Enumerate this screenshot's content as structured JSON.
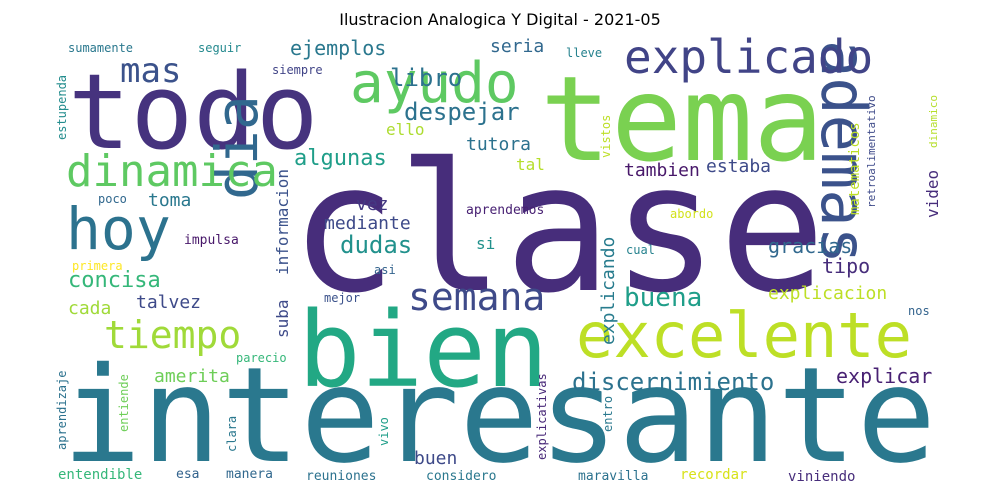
{
  "title": "Ilustracion Analogica Y Digital - 2021-05",
  "words": [
    {
      "text": "clase",
      "color": "#472d7b"
    },
    {
      "text": "interesante",
      "color": "#2a788e"
    },
    {
      "text": "bien",
      "color": "#22a884"
    },
    {
      "text": "tema",
      "color": "#7ad151"
    },
    {
      "text": "todo",
      "color": "#46337e"
    },
    {
      "text": "excelente",
      "color": "#bddf26"
    },
    {
      "text": "ademas",
      "color": "#3b528b"
    },
    {
      "text": "ayudo",
      "color": "#5ec962"
    },
    {
      "text": "hoy",
      "color": "#2c728e"
    },
    {
      "text": "dia",
      "color": "#31688e"
    },
    {
      "text": "explicado",
      "color": "#414487"
    },
    {
      "text": "dinamica",
      "color": "#5ec962"
    },
    {
      "text": "semana",
      "color": "#3e4a89"
    },
    {
      "text": "tiempo",
      "color": "#a0da39"
    },
    {
      "text": "mas",
      "color": "#3b528b"
    },
    {
      "text": "discernimiento",
      "color": "#2c728e"
    },
    {
      "text": "buena",
      "color": "#1f9e89"
    },
    {
      "text": "despejar",
      "color": "#2c728e"
    },
    {
      "text": "libro",
      "color": "#2c728e"
    },
    {
      "text": "ejemplos",
      "color": "#2a788e"
    },
    {
      "text": "algunas",
      "color": "#1f9e89"
    },
    {
      "text": "dudas",
      "color": "#21918c"
    },
    {
      "text": "mediante",
      "color": "#3e4a89"
    },
    {
      "text": "concisa",
      "color": "#35b779"
    },
    {
      "text": "amerita",
      "color": "#6ece58"
    },
    {
      "text": "explicar",
      "color": "#482173"
    },
    {
      "text": "gracias",
      "color": "#31688e"
    },
    {
      "text": "tipo",
      "color": "#472d7b"
    },
    {
      "text": "explicacion",
      "color": "#bddf26"
    },
    {
      "text": "seria",
      "color": "#31688e"
    },
    {
      "text": "tutora",
      "color": "#2c728e"
    },
    {
      "text": "tambien",
      "color": "#48186a"
    },
    {
      "text": "estaba",
      "color": "#3e4a89"
    },
    {
      "text": "toma",
      "color": "#2a788e"
    },
    {
      "text": "vez",
      "color": "#443983"
    },
    {
      "text": "talvez",
      "color": "#3e4a89"
    },
    {
      "text": "cada",
      "color": "#a0da39"
    },
    {
      "text": "buen",
      "color": "#3e4a89"
    },
    {
      "text": "explicando",
      "color": "#287c8e"
    },
    {
      "text": "informacion",
      "color": "#3b528b"
    },
    {
      "text": "matematicos",
      "color": "#bddf26"
    },
    {
      "text": "video",
      "color": "#472d7b"
    },
    {
      "text": "suba",
      "color": "#3e4a89"
    },
    {
      "text": "ello",
      "color": "#addc30"
    },
    {
      "text": "tal",
      "color": "#b5de2b"
    },
    {
      "text": "si",
      "color": "#21918c"
    },
    {
      "text": "aprendemos",
      "color": "#482173"
    },
    {
      "text": "impulsa",
      "color": "#48186a"
    },
    {
      "text": "poco",
      "color": "#31688e"
    },
    {
      "text": "primera",
      "color": "#fde725"
    },
    {
      "text": "sumamente",
      "color": "#2a788e"
    },
    {
      "text": "seguir",
      "color": "#23898e"
    },
    {
      "text": "siempre",
      "color": "#414487"
    },
    {
      "text": "lleve",
      "color": "#26828e"
    },
    {
      "text": "estupenda",
      "color": "#228c8d"
    },
    {
      "text": "vistos",
      "color": "#bddf26"
    },
    {
      "text": "retroalimentativo",
      "color": "#3e4a89"
    },
    {
      "text": "dinamico",
      "color": "#b5de2b"
    },
    {
      "text": "abordo",
      "color": "#d2e21b"
    },
    {
      "text": "cual",
      "color": "#26828e"
    },
    {
      "text": "asi",
      "color": "#33638d"
    },
    {
      "text": "mejor",
      "color": "#3b528b"
    },
    {
      "text": "nos",
      "color": "#33638d"
    },
    {
      "text": "parecio",
      "color": "#35b779"
    },
    {
      "text": "aprendizaje",
      "color": "#2c728e"
    },
    {
      "text": "entiende",
      "color": "#6ece58"
    },
    {
      "text": "clara",
      "color": "#2a788e"
    },
    {
      "text": "vivo",
      "color": "#1f9e89"
    },
    {
      "text": "explicativas",
      "color": "#482878"
    },
    {
      "text": "entro",
      "color": "#2a788e"
    },
    {
      "text": "entendible",
      "color": "#35b779"
    },
    {
      "text": "esa",
      "color": "#33638d"
    },
    {
      "text": "manera",
      "color": "#31688e"
    },
    {
      "text": "reuniones",
      "color": "#2c728e"
    },
    {
      "text": "considero",
      "color": "#2a788e"
    },
    {
      "text": "maravilla",
      "color": "#2c728e"
    },
    {
      "text": "recordar",
      "color": "#d8e219"
    },
    {
      "text": "viniendo",
      "color": "#472d7b"
    }
  ]
}
